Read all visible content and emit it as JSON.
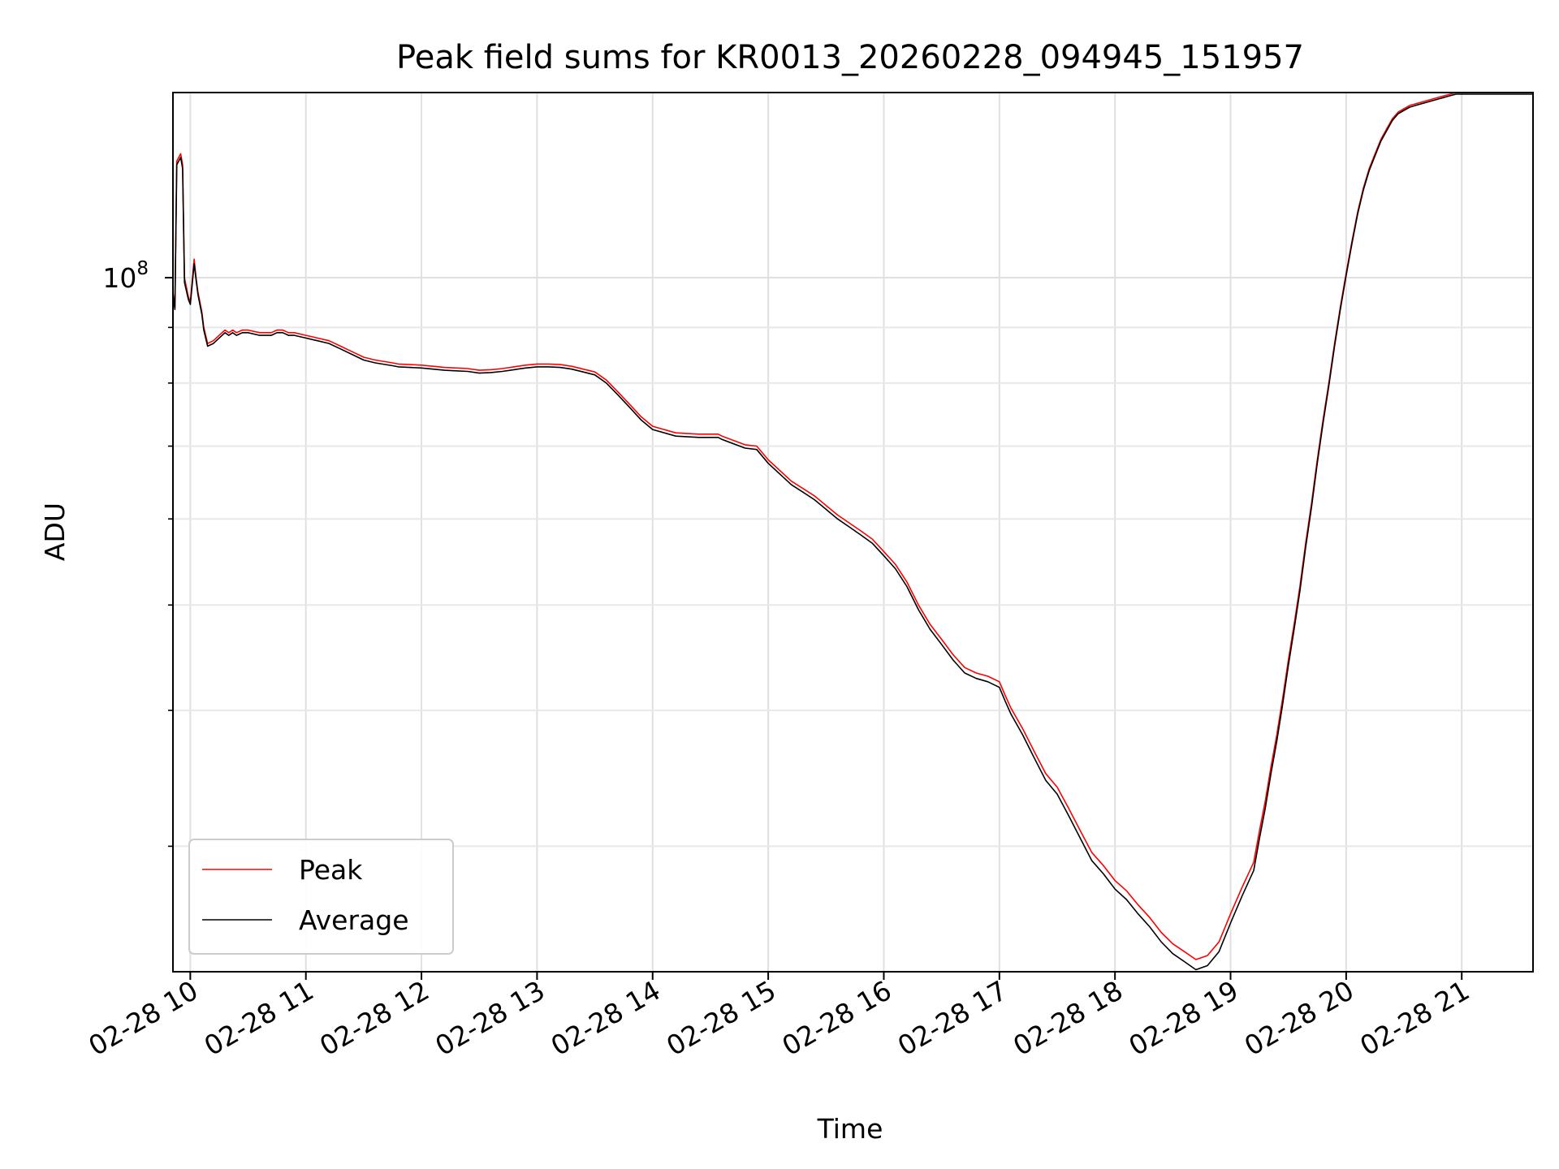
{
  "chart_data": {
    "type": "line",
    "title": "Peak field sums for KR0013_20260228_094945_151957",
    "xlabel": "Time",
    "ylabel": "ADU",
    "x_type": "time",
    "x_range": [
      "2026-02-28 09:51",
      "2026-02-28 21:37"
    ],
    "ylim": [
      23000000,
      148000000
    ],
    "y_scale": "log",
    "y_major_tick_labels": [
      {
        "value": 100000000,
        "base": "10",
        "exponent": "8"
      }
    ],
    "x_tick_labels": [
      "02-28 10",
      "02-28 11",
      "02-28 12",
      "02-28 13",
      "02-28 14",
      "02-28 15",
      "02-28 16",
      "02-28 17",
      "02-28 18",
      "02-28 19",
      "02-28 20",
      "02-28 21"
    ],
    "grid": true,
    "legend_position": "lower-left",
    "series": [
      {
        "name": "Peak",
        "color": "#ff0000",
        "x": [
          "09:51",
          "09:52",
          "09:53",
          "09:55",
          "09:56",
          "09:57",
          "09:59",
          "10:00",
          "10:02",
          "10:03",
          "10:04",
          "10:06",
          "10:07",
          "10:08",
          "10:09",
          "10:12",
          "10:15",
          "10:18",
          "10:20",
          "10:22",
          "10:24",
          "10:27",
          "10:30",
          "10:36",
          "10:42",
          "10:45",
          "10:48",
          "10:51",
          "10:54",
          "11:00",
          "11:06",
          "11:12",
          "11:18",
          "11:24",
          "11:30",
          "11:36",
          "11:45",
          "11:48",
          "11:54",
          "12:00",
          "12:06",
          "12:12",
          "12:18",
          "12:24",
          "12:30",
          "12:36",
          "12:42",
          "12:48",
          "12:54",
          "13:00",
          "13:06",
          "13:12",
          "13:18",
          "13:24",
          "13:30",
          "13:36",
          "13:42",
          "13:48",
          "13:54",
          "14:00",
          "14:12",
          "14:24",
          "14:34",
          "14:36",
          "14:48",
          "14:54",
          "15:00",
          "15:12",
          "15:18",
          "15:24",
          "15:36",
          "15:42",
          "15:48",
          "15:54",
          "16:00",
          "16:06",
          "16:12",
          "16:18",
          "16:24",
          "16:30",
          "16:36",
          "16:42",
          "16:48",
          "16:54",
          "17:00",
          "17:03",
          "17:06",
          "17:12",
          "17:18",
          "17:24",
          "17:30",
          "17:36",
          "17:42",
          "17:48",
          "17:54",
          "18:00",
          "18:06",
          "18:12",
          "18:18",
          "18:24",
          "18:30",
          "18:36",
          "18:42",
          "18:48",
          "18:54",
          "19:00",
          "19:06",
          "19:12",
          "19:15",
          "19:18",
          "19:21",
          "19:24",
          "19:27",
          "19:30",
          "19:33",
          "19:36",
          "19:39",
          "19:42",
          "19:45",
          "19:48",
          "19:51",
          "19:54",
          "19:57",
          "20:00",
          "20:03",
          "20:06",
          "20:09",
          "20:12",
          "20:15",
          "20:18",
          "20:21",
          "20:24",
          "20:27",
          "20:30",
          "20:33",
          "20:36",
          "20:39",
          "20:42",
          "20:45",
          "20:48",
          "20:51",
          "20:54",
          "20:57",
          "21:00",
          "21:06",
          "21:12",
          "21:18",
          "21:24",
          "21:30",
          "21:37"
        ],
        "values": [
          97000000,
          94000000,
          128000000,
          130000000,
          127000000,
          100000000,
          96000000,
          95000000,
          104000000,
          100000000,
          97000000,
          93000000,
          90000000,
          88500000,
          87000000,
          87500000,
          88500000,
          89500000,
          89000000,
          89500000,
          89000000,
          89500000,
          89500000,
          89000000,
          89000000,
          89500000,
          89500000,
          89000000,
          89000000,
          88500000,
          88000000,
          87500000,
          86500000,
          85500000,
          84500000,
          84000000,
          83500000,
          83300000,
          83200000,
          83100000,
          82900000,
          82700000,
          82600000,
          82500000,
          82200000,
          82300000,
          82500000,
          82800000,
          83100000,
          83300000,
          83300000,
          83200000,
          82900000,
          82400000,
          81900000,
          80500000,
          78500000,
          76500000,
          74500000,
          73000000,
          72000000,
          71800000,
          71800000,
          71500000,
          70200000,
          70000000,
          68000000,
          65000000,
          64000000,
          63000000,
          60500000,
          59500000,
          58500000,
          57500000,
          56000000,
          54500000,
          52500000,
          50000000,
          48000000,
          46500000,
          45000000,
          43800000,
          43300000,
          43000000,
          42500000,
          41300000,
          40200000,
          38500000,
          36700000,
          35000000,
          34000000,
          32500000,
          31000000,
          29600000,
          28800000,
          27900000,
          27300000,
          26500000,
          25800000,
          25000000,
          24400000,
          24000000,
          23600000,
          23800000,
          24500000,
          26000000,
          27500000,
          29000000,
          31000000,
          33000000,
          35500000,
          38000000,
          41000000,
          44500000,
          48000000,
          52000000,
          57000000,
          62000000,
          68000000,
          74000000,
          80000000,
          87000000,
          94000000,
          101000000,
          108000000,
          115000000,
          121000000,
          126000000,
          130000000,
          134000000,
          137000000,
          140000000,
          142000000,
          143000000,
          144000000,
          144500000,
          145000000,
          145500000,
          146000000,
          146500000,
          147000000,
          147500000,
          148000000,
          148000000,
          148000000,
          148000000,
          148000000,
          148000000,
          148000000,
          148000000
        ]
      },
      {
        "name": "Average",
        "color": "#000000",
        "x": [
          "09:51",
          "09:52",
          "09:53",
          "09:55",
          "09:56",
          "09:57",
          "09:59",
          "10:00",
          "10:02",
          "10:03",
          "10:04",
          "10:06",
          "10:07",
          "10:08",
          "10:09",
          "10:12",
          "10:15",
          "10:18",
          "10:20",
          "10:22",
          "10:24",
          "10:27",
          "10:30",
          "10:36",
          "10:42",
          "10:45",
          "10:48",
          "10:51",
          "10:54",
          "11:00",
          "11:06",
          "11:12",
          "11:18",
          "11:24",
          "11:30",
          "11:36",
          "11:45",
          "11:48",
          "11:54",
          "12:00",
          "12:06",
          "12:12",
          "12:18",
          "12:24",
          "12:30",
          "12:36",
          "12:42",
          "12:48",
          "12:54",
          "13:00",
          "13:06",
          "13:12",
          "13:18",
          "13:24",
          "13:30",
          "13:36",
          "13:42",
          "13:48",
          "13:54",
          "14:00",
          "14:12",
          "14:24",
          "14:34",
          "14:36",
          "14:48",
          "14:54",
          "15:00",
          "15:12",
          "15:18",
          "15:24",
          "15:36",
          "15:42",
          "15:48",
          "15:54",
          "16:00",
          "16:06",
          "16:12",
          "16:18",
          "16:24",
          "16:30",
          "16:36",
          "16:42",
          "16:48",
          "16:54",
          "17:00",
          "17:03",
          "17:06",
          "17:12",
          "17:18",
          "17:24",
          "17:30",
          "17:36",
          "17:42",
          "17:48",
          "17:54",
          "18:00",
          "18:06",
          "18:12",
          "18:18",
          "18:24",
          "18:30",
          "18:36",
          "18:42",
          "18:48",
          "18:54",
          "19:00",
          "19:06",
          "19:12",
          "19:15",
          "19:18",
          "19:21",
          "19:24",
          "19:27",
          "19:30",
          "19:33",
          "19:36",
          "19:39",
          "19:42",
          "19:45",
          "19:48",
          "19:51",
          "19:54",
          "19:57",
          "20:00",
          "20:03",
          "20:06",
          "20:09",
          "20:12",
          "20:15",
          "20:18",
          "20:21",
          "20:24",
          "20:27",
          "20:30",
          "20:33",
          "20:36",
          "20:39",
          "20:42",
          "20:45",
          "20:48",
          "20:51",
          "20:54",
          "20:57",
          "21:00",
          "21:06",
          "21:12",
          "21:18",
          "21:24",
          "21:30",
          "21:37"
        ],
        "values": [
          96500000,
          93500000,
          127000000,
          129000000,
          126000000,
          99000000,
          95500000,
          94500000,
          103000000,
          99500000,
          96500000,
          92500000,
          89500000,
          88000000,
          86500000,
          87000000,
          88000000,
          89000000,
          88500000,
          89000000,
          88500000,
          89000000,
          89000000,
          88500000,
          88500000,
          89000000,
          89000000,
          88500000,
          88500000,
          88000000,
          87500000,
          87000000,
          86000000,
          85000000,
          84000000,
          83500000,
          83000000,
          82800000,
          82700000,
          82600000,
          82400000,
          82200000,
          82100000,
          82000000,
          81700000,
          81800000,
          82000000,
          82300000,
          82600000,
          82800000,
          82800000,
          82700000,
          82400000,
          81900000,
          81400000,
          80000000,
          78000000,
          76000000,
          74000000,
          72500000,
          71500000,
          71300000,
          71300000,
          71000000,
          69700000,
          69500000,
          67500000,
          64500000,
          63500000,
          62500000,
          60000000,
          59000000,
          58000000,
          57000000,
          55500000,
          54000000,
          52000000,
          49500000,
          47500000,
          46000000,
          44500000,
          43300000,
          42800000,
          42500000,
          42000000,
          40800000,
          39700000,
          38000000,
          36200000,
          34500000,
          33500000,
          32000000,
          30500000,
          29100000,
          28300000,
          27400000,
          26800000,
          26000000,
          25300000,
          24500000,
          23900000,
          23500000,
          23100000,
          23300000,
          24000000,
          25500000,
          27000000,
          28500000,
          30500000,
          32500000,
          35000000,
          37500000,
          40500000,
          44000000,
          47500000,
          51500000,
          56500000,
          61500000,
          67500000,
          73500000,
          79500000,
          86500000,
          93500000,
          100500000,
          107500000,
          114500000,
          120500000,
          125500000,
          129500000,
          133500000,
          136500000,
          139500000,
          141500000,
          142500000,
          143500000,
          144000000,
          144500000,
          145000000,
          145500000,
          146000000,
          146500000,
          147000000,
          147500000,
          147500000,
          147500000,
          147500000,
          147500000,
          147500000,
          147500000,
          147500000
        ]
      }
    ]
  }
}
